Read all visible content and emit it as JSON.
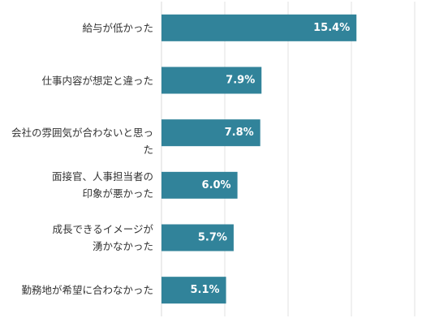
{
  "chart_data": {
    "type": "bar",
    "orientation": "horizontal",
    "categories": [
      "給与が低かった",
      "仕事内容が想定と違った",
      "会社の雰囲気が合わないと思った",
      "面接官、人事担当者の\n印象が悪かった",
      "成長できるイメージが\n湧かなかった",
      "勤務地が希望に合わなかった"
    ],
    "values": [
      15.4,
      7.9,
      7.8,
      6.0,
      5.7,
      5.1
    ],
    "value_labels": [
      "15.4%",
      "7.9%",
      "7.8%",
      "6.0%",
      "5.7%",
      "5.1%"
    ],
    "title": "",
    "xlabel": "",
    "ylabel": "",
    "xlim": [
      0,
      20
    ],
    "grid": true,
    "legend": "none",
    "bar_color": "#31839a",
    "grid_color": "#d9d9d9"
  }
}
